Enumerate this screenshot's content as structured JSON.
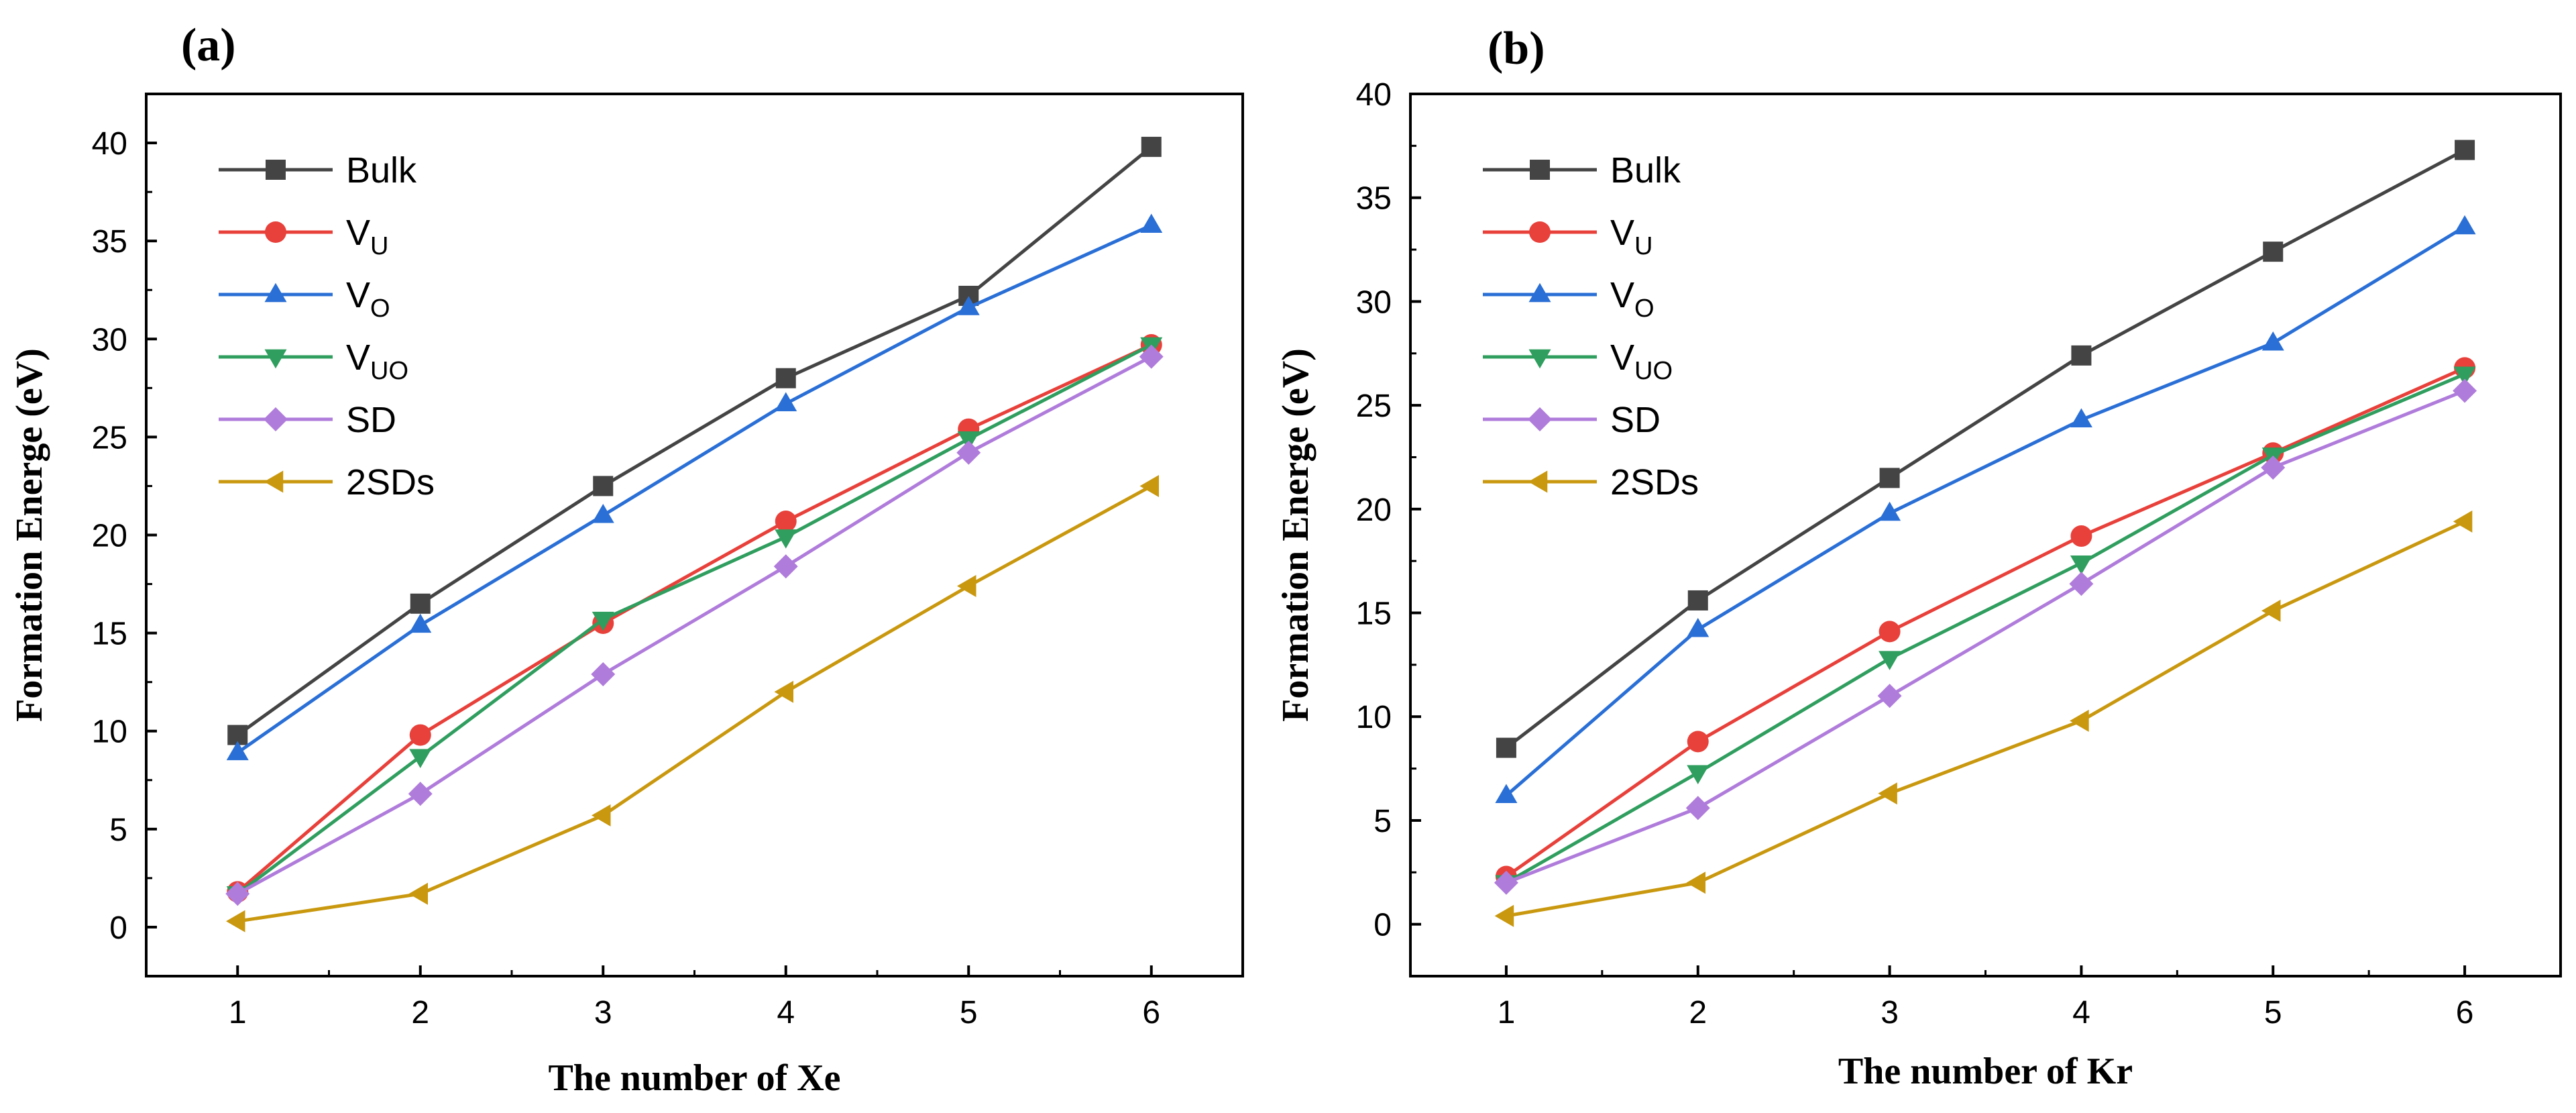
{
  "chart_data": [
    {
      "type": "line",
      "panel_label": "(a)",
      "xlabel": "The number of Xe",
      "ylabel": "Formation Energe (eV)",
      "x": [
        1,
        2,
        3,
        4,
        5,
        6
      ],
      "xlim": [
        0.5,
        6.5
      ],
      "ylim": [
        -2.5,
        42.5
      ],
      "yticks": [
        0,
        5,
        10,
        15,
        20,
        25,
        30,
        35,
        40
      ],
      "legend_position": "top-left",
      "series": [
        {
          "name": "Bulk",
          "main": "Bulk",
          "sub": "",
          "color": "#444444",
          "marker": "square",
          "values": [
            9.8,
            16.5,
            22.5,
            28.0,
            32.2,
            39.8
          ]
        },
        {
          "name": "VU",
          "main": "V",
          "sub": "U",
          "color": "#e8403a",
          "marker": "circle",
          "values": [
            1.8,
            9.8,
            15.5,
            20.7,
            25.4,
            29.7
          ]
        },
        {
          "name": "VO",
          "main": "V",
          "sub": "O",
          "color": "#2a6fd6",
          "marker": "triangle-up",
          "values": [
            8.9,
            15.4,
            21.0,
            26.7,
            31.6,
            35.8
          ]
        },
        {
          "name": "VUO",
          "main": "V",
          "sub": "UO",
          "color": "#2f9e5e",
          "marker": "triangle-down",
          "values": [
            1.7,
            8.7,
            15.7,
            19.9,
            24.9,
            29.7
          ]
        },
        {
          "name": "SD",
          "main": "SD",
          "sub": "",
          "color": "#b07cdb",
          "marker": "diamond",
          "values": [
            1.7,
            6.8,
            12.9,
            18.4,
            24.2,
            29.1
          ]
        },
        {
          "name": "2SDs",
          "main": "2SDs",
          "sub": "",
          "color": "#c9980e",
          "marker": "triangle-left",
          "values": [
            0.3,
            1.7,
            5.7,
            12.0,
            17.4,
            22.5
          ]
        }
      ]
    },
    {
      "type": "line",
      "panel_label": "(b)",
      "xlabel": "The number of Kr",
      "ylabel": "Formation Energe (eV)",
      "x": [
        1,
        2,
        3,
        4,
        5,
        6
      ],
      "xlim": [
        0.5,
        6.5
      ],
      "ylim": [
        -2.5,
        40
      ],
      "yticks": [
        0,
        5,
        10,
        15,
        20,
        25,
        30,
        35,
        40
      ],
      "legend_position": "top-left",
      "series": [
        {
          "name": "Bulk",
          "main": "Bulk",
          "sub": "",
          "color": "#444444",
          "marker": "square",
          "values": [
            8.5,
            15.6,
            21.5,
            27.4,
            32.4,
            37.3
          ]
        },
        {
          "name": "VU",
          "main": "V",
          "sub": "U",
          "color": "#e8403a",
          "marker": "circle",
          "values": [
            2.3,
            8.8,
            14.1,
            18.7,
            22.7,
            26.8
          ]
        },
        {
          "name": "VO",
          "main": "V",
          "sub": "O",
          "color": "#2a6fd6",
          "marker": "triangle-up",
          "values": [
            6.2,
            14.2,
            19.8,
            24.3,
            28.0,
            33.6
          ]
        },
        {
          "name": "VUO",
          "main": "V",
          "sub": "UO",
          "color": "#2f9e5e",
          "marker": "triangle-down",
          "values": [
            2.0,
            7.3,
            12.8,
            17.4,
            22.6,
            26.5
          ]
        },
        {
          "name": "SD",
          "main": "SD",
          "sub": "",
          "color": "#b07cdb",
          "marker": "diamond",
          "values": [
            2.0,
            5.6,
            11.0,
            16.4,
            22.0,
            25.7
          ]
        },
        {
          "name": "2SDs",
          "main": "2SDs",
          "sub": "",
          "color": "#c9980e",
          "marker": "triangle-left",
          "values": [
            0.4,
            2.0,
            6.3,
            9.8,
            15.1,
            19.4
          ]
        }
      ]
    }
  ]
}
